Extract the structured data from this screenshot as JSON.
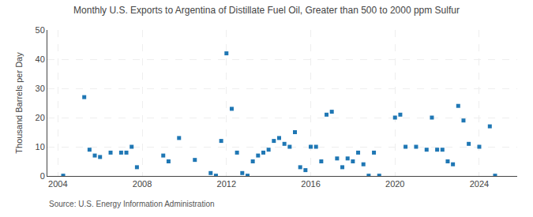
{
  "chart_data": {
    "type": "scatter",
    "title": "Monthly U.S. Exports to Argentina of Distillate Fuel Oil, Greater than 500 to 2000 ppm Sulfur",
    "ylabel": "Thousand Barrels per Day",
    "annotations": [
      "Source: U.S. Energy Information Administration"
    ],
    "marker": "square",
    "grid": true,
    "xlim": [
      2003.5,
      2025.8
    ],
    "ylim": [
      0,
      50
    ],
    "xticks": [
      2004,
      2008,
      2012,
      2016,
      2020,
      2024
    ],
    "yticks": [
      0,
      10,
      20,
      30,
      40,
      50
    ],
    "x": [
      2004.25,
      2005.25,
      2005.5,
      2005.75,
      2006.0,
      2006.5,
      2007.0,
      2007.25,
      2007.5,
      2007.75,
      2009.0,
      2009.25,
      2009.75,
      2010.5,
      2011.25,
      2011.5,
      2011.75,
      2012.0,
      2012.25,
      2012.5,
      2012.75,
      2013.0,
      2013.25,
      2013.5,
      2013.75,
      2014.0,
      2014.25,
      2014.5,
      2014.75,
      2015.0,
      2015.25,
      2015.5,
      2015.75,
      2016.0,
      2016.25,
      2016.5,
      2016.75,
      2017.0,
      2017.25,
      2017.5,
      2017.75,
      2018.0,
      2018.25,
      2018.5,
      2018.75,
      2019.0,
      2019.25,
      2020.0,
      2020.25,
      2020.5,
      2021.0,
      2021.5,
      2021.75,
      2022.0,
      2022.25,
      2022.5,
      2022.75,
      2023.0,
      2023.25,
      2023.5,
      2024.0,
      2024.5,
      2024.75
    ],
    "values": [
      0.1,
      27,
      9,
      7,
      6.5,
      8,
      8,
      8,
      10,
      3,
      7,
      5,
      13,
      5.5,
      1,
      0.1,
      12,
      42,
      23,
      8,
      1,
      0.1,
      5,
      7,
      8,
      9,
      12,
      13,
      11,
      10,
      15,
      3,
      2,
      10,
      10,
      5,
      21,
      22,
      6,
      3,
      6,
      5,
      8,
      4,
      0.1,
      8,
      0.1,
      20,
      21,
      10,
      10,
      9,
      20,
      9,
      9,
      5,
      4,
      24,
      19,
      11,
      10,
      17,
      0.1
    ]
  }
}
